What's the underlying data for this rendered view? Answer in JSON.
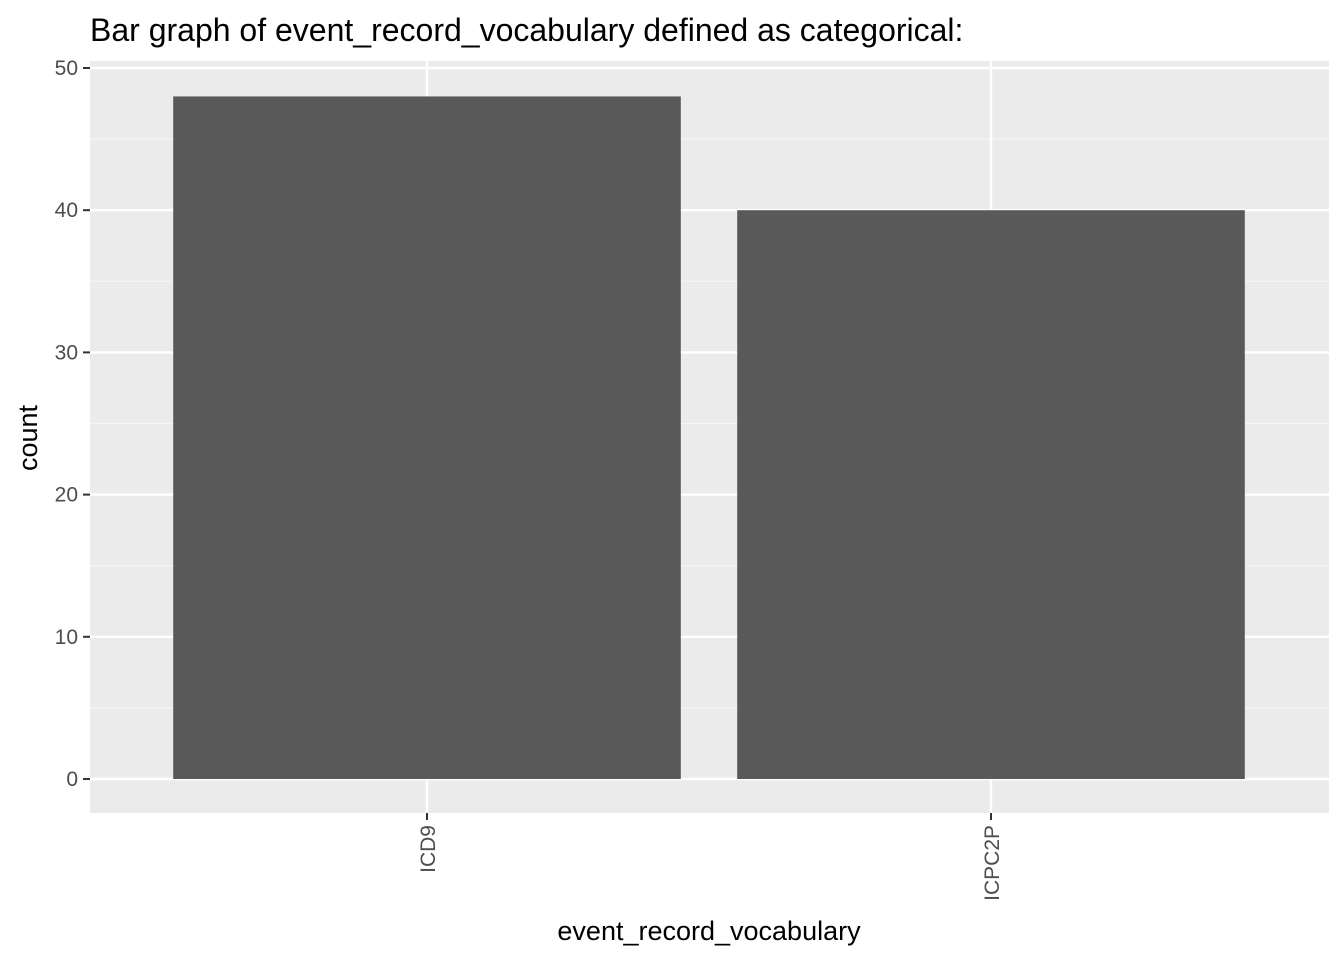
{
  "chart_data": {
    "type": "bar",
    "title": "Bar graph of event_record_vocabulary defined as categorical:",
    "xlabel": "event_record_vocabulary",
    "ylabel": "count",
    "categories": [
      "ICD9",
      "ICPC2P"
    ],
    "values": [
      48,
      40
    ],
    "ylim": [
      0,
      50
    ],
    "yticks": [
      0,
      10,
      20,
      30,
      40,
      50
    ],
    "ytick_labels": [
      "0",
      "10",
      "20",
      "30",
      "40",
      "50"
    ],
    "x_tick_label_rotation": "vertical",
    "grid": true,
    "legend": "none",
    "colors": {
      "bar": "#595959",
      "panel_background": "#ebebeb",
      "grid_major": "#ffffff",
      "grid_minor": "#f5f5f5",
      "tick_text": "#4d4d4d",
      "tick_mark": "#333333"
    }
  }
}
